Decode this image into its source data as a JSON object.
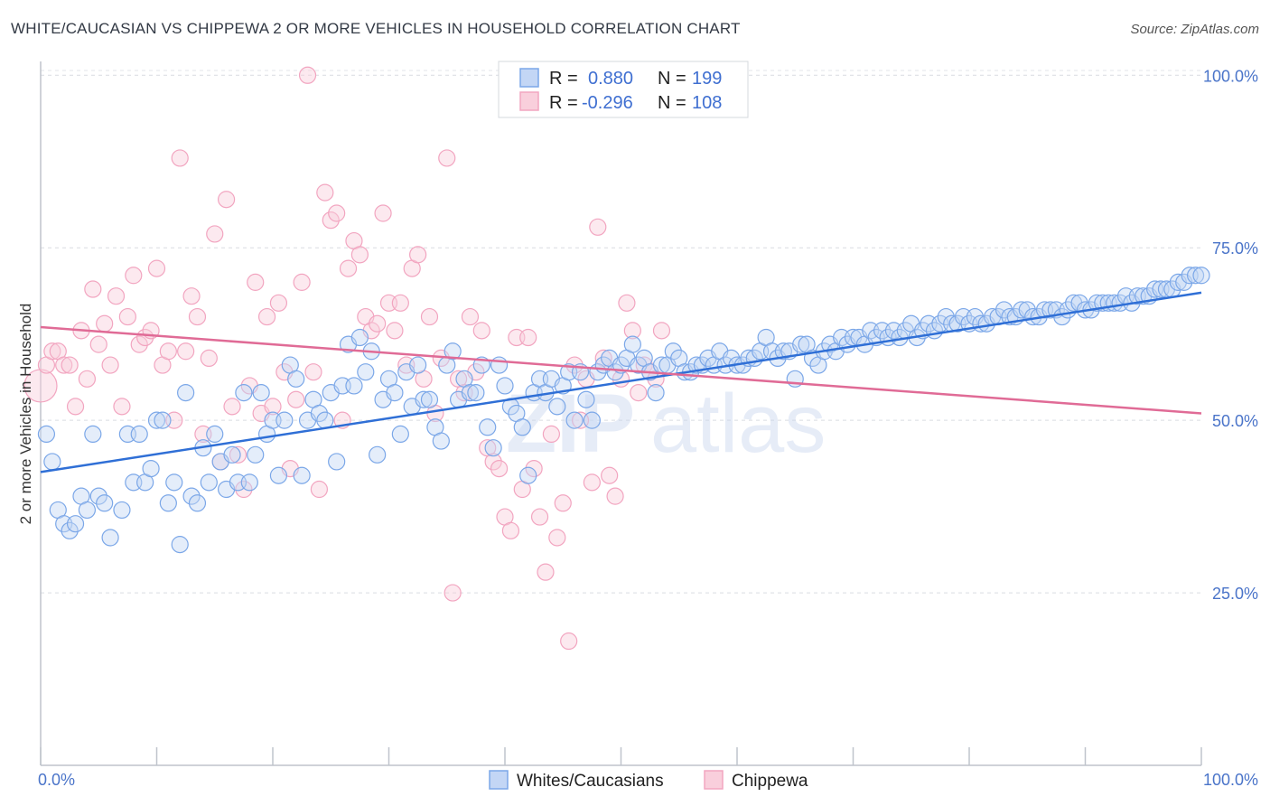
{
  "header": {
    "title": "WHITE/CAUCASIAN VS CHIPPEWA 2 OR MORE VEHICLES IN HOUSEHOLD CORRELATION CHART",
    "source": "Source: ZipAtlas.com"
  },
  "watermark": {
    "left": "ZIP",
    "right": "atlas"
  },
  "chart_data": {
    "type": "scatter",
    "ylabel": "2 or more Vehicles in Household",
    "xlim": [
      0,
      100
    ],
    "ylim": [
      0,
      102
    ],
    "x_tick_labels": [
      "0.0%",
      "100.0%"
    ],
    "y_ticks": [
      25,
      50,
      75,
      100
    ],
    "y_tick_labels": [
      "25.0%",
      "50.0%",
      "75.0%",
      "100.0%"
    ],
    "grid": "horizontal dashed",
    "legend_top": {
      "rows": [
        {
          "r_label": "R =",
          "r_value": "0.880",
          "n_label": "N =",
          "n_value": "199"
        },
        {
          "r_label": "R =",
          "r_value": "-0.296",
          "n_label": "N =",
          "n_value": "108"
        }
      ]
    },
    "series": [
      {
        "name": "Whites/Caucasians",
        "color": "#7ba7e8",
        "line_color": "#2f6fd6",
        "trend": {
          "x": [
            0,
            100
          ],
          "y": [
            42.5,
            68.5
          ]
        },
        "points": [
          [
            0.5,
            48
          ],
          [
            1,
            44
          ],
          [
            1.5,
            37
          ],
          [
            2,
            35
          ],
          [
            2.5,
            34
          ],
          [
            3,
            35
          ],
          [
            3.5,
            39
          ],
          [
            4,
            37
          ],
          [
            4.5,
            48
          ],
          [
            5,
            39
          ],
          [
            5.5,
            38
          ],
          [
            6,
            33
          ],
          [
            7,
            37
          ],
          [
            7.5,
            48
          ],
          [
            8,
            41
          ],
          [
            8.5,
            48
          ],
          [
            9,
            41
          ],
          [
            9.5,
            43
          ],
          [
            10,
            50
          ],
          [
            10.5,
            50
          ],
          [
            11,
            38
          ],
          [
            11.5,
            41
          ],
          [
            12,
            32
          ],
          [
            12.5,
            54
          ],
          [
            13,
            39
          ],
          [
            13.5,
            38
          ],
          [
            14,
            46
          ],
          [
            14.5,
            41
          ],
          [
            15,
            48
          ],
          [
            15.5,
            44
          ],
          [
            16,
            40
          ],
          [
            16.5,
            45
          ],
          [
            17,
            41
          ],
          [
            17.5,
            54
          ],
          [
            18,
            41
          ],
          [
            18.5,
            45
          ],
          [
            19,
            54
          ],
          [
            19.5,
            48
          ],
          [
            20,
            50
          ],
          [
            20.5,
            42
          ],
          [
            21,
            50
          ],
          [
            21.5,
            58
          ],
          [
            22,
            56
          ],
          [
            22.5,
            42
          ],
          [
            23,
            50
          ],
          [
            23.5,
            53
          ],
          [
            24,
            51
          ],
          [
            24.5,
            50
          ],
          [
            25,
            54
          ],
          [
            25.5,
            44
          ],
          [
            26,
            55
          ],
          [
            26.5,
            61
          ],
          [
            27,
            55
          ],
          [
            27.5,
            62
          ],
          [
            28,
            57
          ],
          [
            28.5,
            60
          ],
          [
            29,
            45
          ],
          [
            29.5,
            53
          ],
          [
            30,
            56
          ],
          [
            30.5,
            54
          ],
          [
            31,
            48
          ],
          [
            31.5,
            57
          ],
          [
            32,
            52
          ],
          [
            32.5,
            58
          ],
          [
            33,
            53
          ],
          [
            33.5,
            53
          ],
          [
            34,
            49
          ],
          [
            34.5,
            47
          ],
          [
            35,
            58
          ],
          [
            35.5,
            60
          ],
          [
            36,
            53
          ],
          [
            36.5,
            56
          ],
          [
            37,
            54
          ],
          [
            37.5,
            54
          ],
          [
            38,
            58
          ],
          [
            38.5,
            49
          ],
          [
            39,
            46
          ],
          [
            39.5,
            58
          ],
          [
            40,
            55
          ],
          [
            40.5,
            52
          ],
          [
            41,
            51
          ],
          [
            41.5,
            49
          ],
          [
            42,
            42
          ],
          [
            42.5,
            54
          ],
          [
            43,
            56
          ],
          [
            43.5,
            54
          ],
          [
            44,
            56
          ],
          [
            44.5,
            52
          ],
          [
            45,
            55
          ],
          [
            45.5,
            57
          ],
          [
            46,
            50
          ],
          [
            46.5,
            57
          ],
          [
            47,
            53
          ],
          [
            47.5,
            50
          ],
          [
            48,
            57
          ],
          [
            48.5,
            58
          ],
          [
            49,
            59
          ],
          [
            49.5,
            57
          ],
          [
            50,
            58
          ],
          [
            50.5,
            59
          ],
          [
            51,
            61
          ],
          [
            51.5,
            58
          ],
          [
            52,
            59
          ],
          [
            52.5,
            57
          ],
          [
            53,
            54
          ],
          [
            53.5,
            58
          ],
          [
            54,
            58
          ],
          [
            54.5,
            60
          ],
          [
            55,
            59
          ],
          [
            55.5,
            57
          ],
          [
            56,
            57
          ],
          [
            56.5,
            58
          ],
          [
            57,
            58
          ],
          [
            57.5,
            59
          ],
          [
            58,
            58
          ],
          [
            58.5,
            60
          ],
          [
            59,
            58
          ],
          [
            59.5,
            59
          ],
          [
            60,
            58
          ],
          [
            60.5,
            58
          ],
          [
            61,
            59
          ],
          [
            61.5,
            59
          ],
          [
            62,
            60
          ],
          [
            62.5,
            62
          ],
          [
            63,
            60
          ],
          [
            63.5,
            59
          ],
          [
            64,
            60
          ],
          [
            64.5,
            60
          ],
          [
            65,
            56
          ],
          [
            65.5,
            61
          ],
          [
            66,
            61
          ],
          [
            66.5,
            59
          ],
          [
            67,
            58
          ],
          [
            67.5,
            60
          ],
          [
            68,
            61
          ],
          [
            68.5,
            60
          ],
          [
            69,
            62
          ],
          [
            69.5,
            61
          ],
          [
            70,
            62
          ],
          [
            70.5,
            62
          ],
          [
            71,
            61
          ],
          [
            71.5,
            63
          ],
          [
            72,
            62
          ],
          [
            72.5,
            63
          ],
          [
            73,
            62
          ],
          [
            73.5,
            63
          ],
          [
            74,
            62
          ],
          [
            74.5,
            63
          ],
          [
            75,
            64
          ],
          [
            75.5,
            62
          ],
          [
            76,
            63
          ],
          [
            76.5,
            64
          ],
          [
            77,
            63
          ],
          [
            77.5,
            64
          ],
          [
            78,
            65
          ],
          [
            78.5,
            64
          ],
          [
            79,
            64
          ],
          [
            79.5,
            65
          ],
          [
            80,
            64
          ],
          [
            80.5,
            65
          ],
          [
            81,
            64
          ],
          [
            81.5,
            64
          ],
          [
            82,
            65
          ],
          [
            82.5,
            65
          ],
          [
            83,
            66
          ],
          [
            83.5,
            65
          ],
          [
            84,
            65
          ],
          [
            84.5,
            66
          ],
          [
            85,
            66
          ],
          [
            85.5,
            65
          ],
          [
            86,
            65
          ],
          [
            86.5,
            66
          ],
          [
            87,
            66
          ],
          [
            87.5,
            66
          ],
          [
            88,
            65
          ],
          [
            88.5,
            66
          ],
          [
            89,
            67
          ],
          [
            89.5,
            67
          ],
          [
            90,
            66
          ],
          [
            90.5,
            66
          ],
          [
            91,
            67
          ],
          [
            91.5,
            67
          ],
          [
            92,
            67
          ],
          [
            92.5,
            67
          ],
          [
            93,
            67
          ],
          [
            93.5,
            68
          ],
          [
            94,
            67
          ],
          [
            94.5,
            68
          ],
          [
            95,
            68
          ],
          [
            95.5,
            68
          ],
          [
            96,
            69
          ],
          [
            96.5,
            69
          ],
          [
            97,
            69
          ],
          [
            97.5,
            69
          ],
          [
            98,
            70
          ],
          [
            98.5,
            70
          ],
          [
            99,
            71
          ],
          [
            99.5,
            71
          ],
          [
            100,
            71
          ]
        ]
      },
      {
        "name": "Chippewa",
        "color": "#f2a5c0",
        "line_color": "#e06b96",
        "trend": {
          "x": [
            0,
            100
          ],
          "y": [
            63.5,
            51
          ]
        },
        "points": [
          [
            0,
            55
          ],
          [
            0.5,
            58
          ],
          [
            1,
            60
          ],
          [
            1.5,
            60
          ],
          [
            2,
            58
          ],
          [
            2.5,
            58
          ],
          [
            3,
            52
          ],
          [
            3.5,
            63
          ],
          [
            4,
            56
          ],
          [
            4.5,
            69
          ],
          [
            5,
            61
          ],
          [
            5.5,
            64
          ],
          [
            6,
            58
          ],
          [
            6.5,
            68
          ],
          [
            7,
            52
          ],
          [
            7.5,
            65
          ],
          [
            8,
            71
          ],
          [
            8.5,
            61
          ],
          [
            9,
            62
          ],
          [
            9.5,
            63
          ],
          [
            10,
            72
          ],
          [
            10.5,
            58
          ],
          [
            11,
            60
          ],
          [
            11.5,
            50
          ],
          [
            12,
            88
          ],
          [
            12.5,
            60
          ],
          [
            13,
            68
          ],
          [
            13.5,
            65
          ],
          [
            14,
            48
          ],
          [
            14.5,
            59
          ],
          [
            15,
            77
          ],
          [
            15.5,
            44
          ],
          [
            16,
            82
          ],
          [
            16.5,
            52
          ],
          [
            17,
            45
          ],
          [
            17.5,
            40
          ],
          [
            18,
            55
          ],
          [
            18.5,
            70
          ],
          [
            19,
            51
          ],
          [
            19.5,
            65
          ],
          [
            20,
            52
          ],
          [
            20.5,
            67
          ],
          [
            21,
            57
          ],
          [
            21.5,
            43
          ],
          [
            22,
            53
          ],
          [
            22.5,
            70
          ],
          [
            23,
            100
          ],
          [
            23.5,
            57
          ],
          [
            24,
            40
          ],
          [
            24.5,
            83
          ],
          [
            25,
            79
          ],
          [
            25.5,
            80
          ],
          [
            26,
            50
          ],
          [
            26.5,
            72
          ],
          [
            27,
            76
          ],
          [
            27.5,
            74
          ],
          [
            28,
            65
          ],
          [
            28.5,
            63
          ],
          [
            29,
            64
          ],
          [
            29.5,
            80
          ],
          [
            30,
            67
          ],
          [
            30.5,
            63
          ],
          [
            31,
            67
          ],
          [
            31.5,
            58
          ],
          [
            32,
            72
          ],
          [
            32.5,
            74
          ],
          [
            33,
            56
          ],
          [
            33.5,
            65
          ],
          [
            34,
            51
          ],
          [
            34.5,
            59
          ],
          [
            35,
            88
          ],
          [
            35.5,
            25
          ],
          [
            36,
            56
          ],
          [
            36.5,
            54
          ],
          [
            37,
            65
          ],
          [
            37.5,
            57
          ],
          [
            38,
            63
          ],
          [
            38.5,
            46
          ],
          [
            39,
            44
          ],
          [
            39.5,
            43
          ],
          [
            40,
            36
          ],
          [
            40.5,
            34
          ],
          [
            41,
            62
          ],
          [
            41.5,
            40
          ],
          [
            42,
            62
          ],
          [
            42.5,
            43
          ],
          [
            43,
            36
          ],
          [
            43.5,
            28
          ],
          [
            44,
            48
          ],
          [
            44.5,
            33
          ],
          [
            45,
            38
          ],
          [
            45.5,
            18
          ],
          [
            46,
            58
          ],
          [
            46.5,
            50
          ],
          [
            47,
            56
          ],
          [
            47.5,
            41
          ],
          [
            48,
            78
          ],
          [
            48.5,
            59
          ],
          [
            49,
            42
          ],
          [
            49.5,
            39
          ],
          [
            50,
            56
          ],
          [
            50.5,
            67
          ],
          [
            51,
            63
          ],
          [
            51.5,
            54
          ],
          [
            52,
            58
          ],
          [
            52.5,
            57
          ],
          [
            53,
            56
          ],
          [
            53.5,
            63
          ]
        ]
      }
    ]
  }
}
